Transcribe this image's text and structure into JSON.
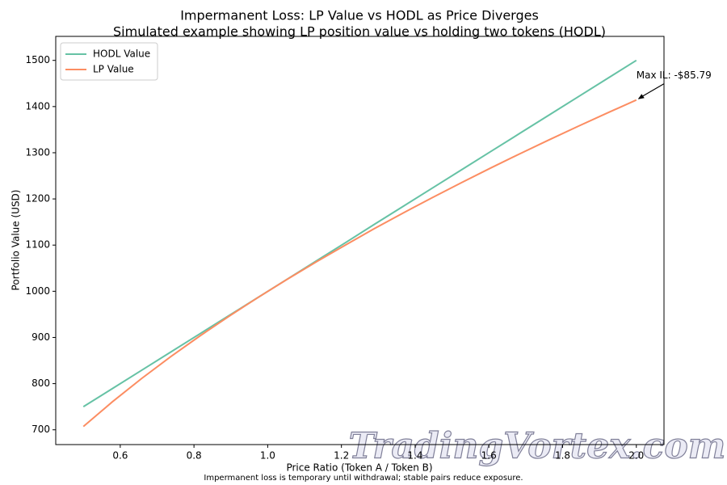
{
  "chart_data": {
    "type": "line",
    "title": "Impermanent Loss: LP Value vs HODL as Price Diverges",
    "subtitle": "Simulated example showing LP position value vs holding two tokens (HODL)",
    "x_label": "Price Ratio (Token A / Token B)",
    "y_label": "Portfolio Value (USD)",
    "annotation": "Max IL: -$85.79",
    "footnote": "Impermanent loss is temporary until withdrawal; stable pairs reduce exposure.",
    "watermark": "TradingVortex.com",
    "x": [
      0.5,
      0.579,
      0.658,
      0.737,
      0.816,
      0.895,
      0.974,
      1.053,
      1.132,
      1.211,
      1.289,
      1.368,
      1.447,
      1.526,
      1.605,
      1.684,
      1.763,
      1.842,
      1.921,
      2.0
    ],
    "series": [
      {
        "name": "HODL Value",
        "color": "#66c2a5",
        "values": [
          750,
          789.47,
          828.95,
          868.42,
          907.89,
          947.37,
          986.84,
          1026.32,
          1065.79,
          1105.26,
          1144.74,
          1184.21,
          1223.68,
          1263.16,
          1302.63,
          1342.11,
          1381.58,
          1421.05,
          1460.53,
          1500
        ]
      },
      {
        "name": "LP Value",
        "color": "#fc8d62",
        "values": [
          707.11,
          760.89,
          811.11,
          858.39,
          903.22,
          945.91,
          986.75,
          1025.98,
          1063.76,
          1100.24,
          1135.55,
          1169.79,
          1203.07,
          1235.44,
          1266.99,
          1297.77,
          1327.84,
          1357.24,
          1386.02,
          1414.21
        ]
      }
    ],
    "xlim": [
      0.425,
      2.075
    ],
    "ylim": [
      668,
      1552
    ],
    "xticks": [
      0.6,
      0.8,
      {
        "value": 1,
        "label": "1.0"
      },
      1.2,
      1.4,
      1.6,
      1.8,
      {
        "value": 2,
        "label": "2.0"
      }
    ],
    "yticks": [
      700,
      800,
      900,
      1000,
      1100,
      1200,
      1300,
      1400,
      1500
    ],
    "grid": false,
    "legend": "upper-left"
  }
}
